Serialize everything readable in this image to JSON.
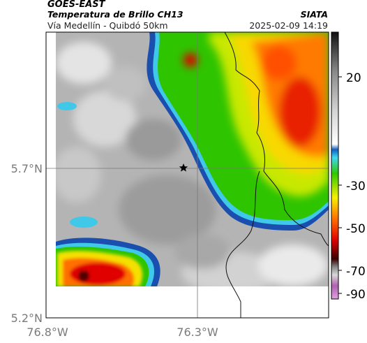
{
  "header": {
    "satellite": "GOES-EAST",
    "product": "Temperatura de Brillo CH13",
    "location": "Vía Medellín - Quibdó 50km",
    "org": "SIATA",
    "datetime": "2025-02-09 14:19"
  },
  "axes": {
    "lat_labels": [
      "5.7°N",
      "5.2°N"
    ],
    "lon_labels": [
      "76.8°W",
      "76.3°W"
    ]
  },
  "colorbar": {
    "ticks": [
      "20",
      "-30",
      "-50",
      "-70",
      "-90"
    ],
    "colors": [
      "#f4f4f4",
      "#8a8a8a",
      "#1d1d1d",
      "#1f6fd0",
      "#3fd8f0",
      "#27c400",
      "#f4ee00",
      "#ff6a00",
      "#e20000",
      "#3a0000",
      "#d070c0"
    ]
  },
  "marker": {
    "name": "star-marker"
  }
}
